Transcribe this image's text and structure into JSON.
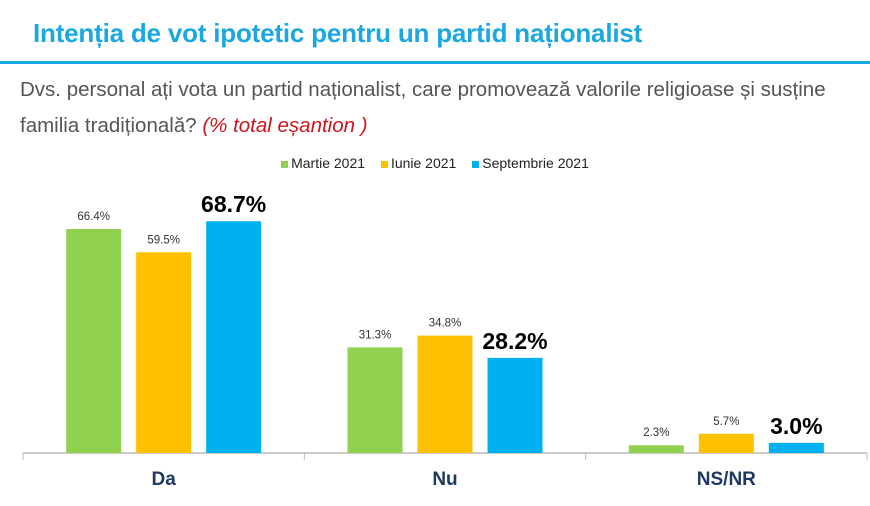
{
  "title": "Intenția de vot ipotetic pentru un partid naționalist",
  "question": "Dvs. personal ați vota un partid naționalist, care promovează valorile religioase și susține familia tradițională?",
  "question_note": "(% total eșantion )",
  "chart_data": {
    "type": "bar",
    "categories": [
      "Da",
      "Nu",
      "NS/NR"
    ],
    "series": [
      {
        "name": "Martie 2021",
        "color": "#92D050",
        "values": [
          66.4,
          31.3,
          2.3
        ],
        "labels": [
          "66.4%",
          "31.3%",
          "2.3%"
        ]
      },
      {
        "name": "Iunie 2021",
        "color": "#FFC000",
        "values": [
          59.5,
          34.8,
          5.7
        ],
        "labels": [
          "59.5%",
          "34.8%",
          "5.7%"
        ]
      },
      {
        "name": "Septembrie 2021",
        "color": "#00B0F0",
        "values": [
          68.7,
          28.2,
          3.0
        ],
        "labels": [
          "68.7%",
          "28.2%",
          "3.0%"
        ]
      }
    ],
    "ylim": [
      0,
      70
    ],
    "grid": false,
    "legend": "top"
  }
}
